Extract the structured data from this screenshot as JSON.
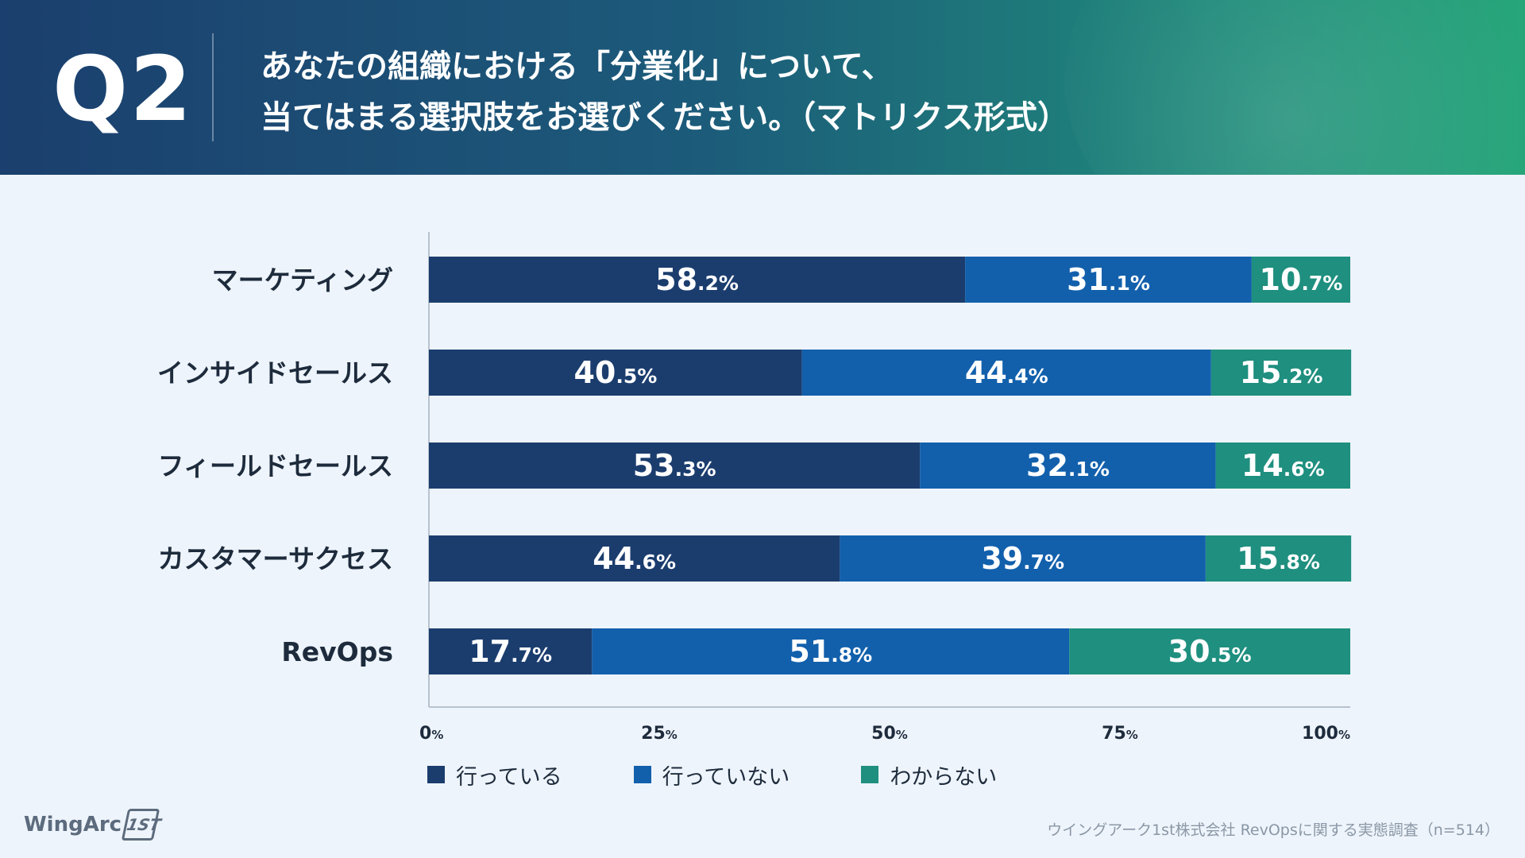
{
  "header": {
    "question_label": "Q2",
    "question_line1": "あなたの組織における「分業化」について、",
    "question_line2": "当てはまる選択肢をお選びください。（マトリクス形式）"
  },
  "colors": {
    "doing": "#1b3d6e",
    "not_doing": "#1260ac",
    "unknown": "#1f8f7f"
  },
  "chart_data": {
    "type": "bar",
    "orientation": "horizontal",
    "stacked": true,
    "categories": [
      "マーケティング",
      "インサイドセールス",
      "フィールドセールス",
      "カスタマーサクセス",
      "RevOps"
    ],
    "series": [
      {
        "name": "行っている",
        "values": [
          58.2,
          40.5,
          53.3,
          44.6,
          17.7
        ]
      },
      {
        "name": "行っていない",
        "values": [
          31.1,
          44.4,
          32.1,
          39.7,
          51.8
        ]
      },
      {
        "name": "わからない",
        "values": [
          10.7,
          15.2,
          14.6,
          15.8,
          30.5
        ]
      }
    ],
    "x_ticks": [
      "0%",
      "25%",
      "50%",
      "75%",
      "100%"
    ],
    "xlim": [
      0,
      100
    ],
    "legend_position": "bottom"
  },
  "footer": {
    "logo_text": "WingArc",
    "logo_mark": "1ST",
    "source": "ウイングアーク1st株式会社 RevOpsに関する実態調査（n=514）"
  }
}
